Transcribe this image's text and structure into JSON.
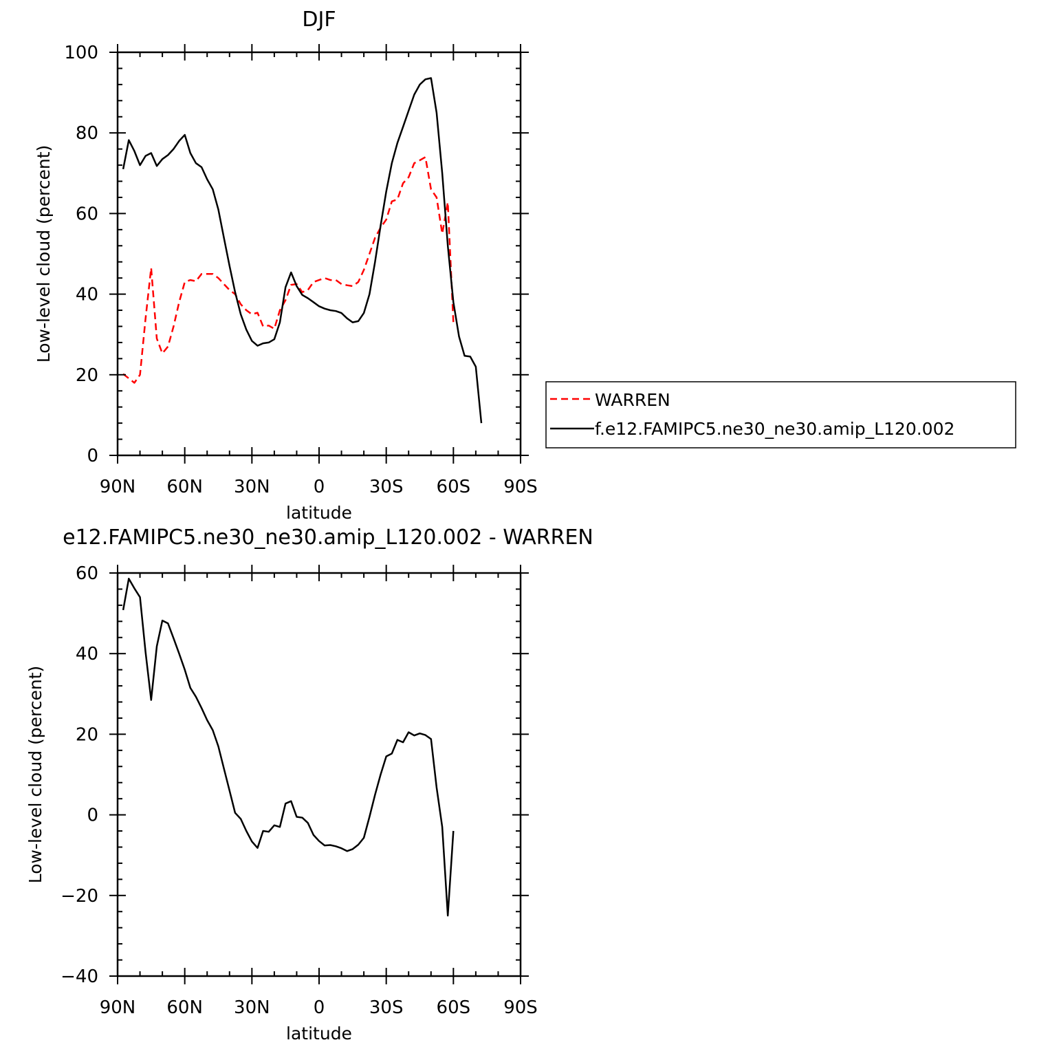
{
  "chart_data": [
    {
      "type": "line",
      "title": "DJF",
      "xlabel": "latitude",
      "ylabel": "Low-level cloud (percent)",
      "xlim": [
        90,
        -90
      ],
      "ylim": [
        0,
        100
      ],
      "xticks": [
        90,
        60,
        30,
        0,
        -30,
        -60,
        -90
      ],
      "xtick_labels": [
        "90N",
        "60N",
        "30N",
        "0",
        "30S",
        "60S",
        "90S"
      ],
      "yticks": [
        0,
        20,
        40,
        60,
        80,
        100
      ],
      "ytick_labels": [
        "0",
        "20",
        "40",
        "60",
        "80",
        "100"
      ],
      "legend_placement": "right",
      "series": [
        {
          "name": "WARREN",
          "color": "#ff0000",
          "dash": "dashed",
          "points": [
            [
              87.5,
              20.2
            ],
            [
              82.5,
              18
            ],
            [
              80,
              20
            ],
            [
              77.5,
              34
            ],
            [
              75,
              46.5
            ],
            [
              72.5,
              29
            ],
            [
              70,
              25.3
            ],
            [
              67.5,
              27
            ],
            [
              65,
              32
            ],
            [
              62.5,
              38
            ],
            [
              60,
              43
            ],
            [
              57.5,
              43.5
            ],
            [
              55,
              43.2
            ],
            [
              52.5,
              45
            ],
            [
              50,
              45
            ],
            [
              47.5,
              45
            ],
            [
              45,
              44
            ],
            [
              42.5,
              42.5
            ],
            [
              40,
              41
            ],
            [
              37.5,
              40
            ],
            [
              35,
              37.5
            ],
            [
              32.5,
              36
            ],
            [
              30,
              35
            ],
            [
              27.5,
              35.4
            ],
            [
              25,
              32
            ],
            [
              22.5,
              32.2
            ],
            [
              20,
              31.4
            ],
            [
              17.5,
              36
            ],
            [
              15,
              38.5
            ],
            [
              12.5,
              42.3
            ],
            [
              10,
              42.5
            ],
            [
              7.5,
              40.5
            ],
            [
              5,
              41
            ],
            [
              2.5,
              43
            ],
            [
              0,
              43.5
            ],
            [
              -2.5,
              44
            ],
            [
              -5,
              43.5
            ],
            [
              -7.5,
              43.5
            ],
            [
              -10,
              42.5
            ],
            [
              -12.5,
              42.2
            ],
            [
              -15,
              42
            ],
            [
              -17.5,
              43
            ],
            [
              -20,
              46
            ],
            [
              -22.5,
              50
            ],
            [
              -25,
              54
            ],
            [
              -27.5,
              56.5
            ],
            [
              -30,
              58.5
            ],
            [
              -32.5,
              63
            ],
            [
              -35,
              63.5
            ],
            [
              -37.5,
              67.5
            ],
            [
              -40,
              69
            ],
            [
              -42.5,
              72.5
            ],
            [
              -45,
              73.2
            ],
            [
              -47.5,
              74
            ],
            [
              -50,
              66
            ],
            [
              -52.5,
              64
            ],
            [
              -55,
              55
            ],
            [
              -57.5,
              62.8
            ],
            [
              -60,
              33
            ]
          ]
        },
        {
          "name": "f.e12.FAMIPC5.ne30_ne30.amip_L120.002",
          "color": "#000000",
          "dash": "solid",
          "points": [
            [
              87.5,
              71
            ],
            [
              85,
              78.2
            ],
            [
              82.5,
              75.5
            ],
            [
              80,
              72
            ],
            [
              77.5,
              74.3
            ],
            [
              75,
              75
            ],
            [
              72.5,
              71.8
            ],
            [
              70,
              73.5
            ],
            [
              67.5,
              74.5
            ],
            [
              65,
              76
            ],
            [
              62.5,
              78
            ],
            [
              60,
              79.5
            ],
            [
              57.5,
              75
            ],
            [
              55,
              72.5
            ],
            [
              52.5,
              71.5
            ],
            [
              50,
              68.5
            ],
            [
              47.5,
              66
            ],
            [
              45,
              61
            ],
            [
              42.5,
              54
            ],
            [
              40,
              47
            ],
            [
              37.5,
              40.5
            ],
            [
              35,
              35
            ],
            [
              32.5,
              31.2
            ],
            [
              30,
              28.4
            ],
            [
              27.5,
              27.2
            ],
            [
              25,
              27.8
            ],
            [
              22.5,
              28
            ],
            [
              20,
              28.8
            ],
            [
              17.5,
              33
            ],
            [
              15,
              41.7
            ],
            [
              12.5,
              45.4
            ],
            [
              10,
              42
            ],
            [
              7.5,
              39.8
            ],
            [
              5,
              39
            ],
            [
              2.5,
              38
            ],
            [
              0,
              37
            ],
            [
              -2.5,
              36.4
            ],
            [
              -5,
              36
            ],
            [
              -7.5,
              35.8
            ],
            [
              -10,
              35.3
            ],
            [
              -12.5,
              34
            ],
            [
              -15,
              33
            ],
            [
              -17.5,
              33.3
            ],
            [
              -20,
              35.3
            ],
            [
              -22.5,
              40
            ],
            [
              -25,
              48
            ],
            [
              -27.5,
              57
            ],
            [
              -30,
              65.5
            ],
            [
              -32.5,
              72.5
            ],
            [
              -35,
              77.5
            ],
            [
              -37.5,
              81.5
            ],
            [
              -40,
              85.5
            ],
            [
              -42.5,
              89.5
            ],
            [
              -45,
              92
            ],
            [
              -47.5,
              93.3
            ],
            [
              -50,
              93.6
            ],
            [
              -52.5,
              85
            ],
            [
              -55,
              70
            ],
            [
              -57.5,
              52
            ],
            [
              -60,
              38
            ],
            [
              -62.5,
              29.5
            ],
            [
              -65,
              24.7
            ],
            [
              -67.5,
              24.5
            ],
            [
              -70,
              22
            ],
            [
              -72.5,
              8
            ]
          ]
        }
      ]
    },
    {
      "type": "line",
      "title": "e12.FAMIPC5.ne30_ne30.amip_L120.002 - WARREN",
      "xlabel": "latitude",
      "ylabel": "Low-level cloud (percent)",
      "xlim": [
        90,
        -90
      ],
      "ylim": [
        -40,
        60
      ],
      "xticks": [
        90,
        60,
        30,
        0,
        -30,
        -60,
        -90
      ],
      "xtick_labels": [
        "90N",
        "60N",
        "30N",
        "0",
        "30S",
        "60S",
        "90S"
      ],
      "yticks": [
        -40,
        -20,
        0,
        20,
        40,
        60
      ],
      "ytick_labels": [
        "−40",
        "−20",
        "0",
        "20",
        "40",
        "60"
      ],
      "series": [
        {
          "color": "#000000",
          "dash": "solid",
          "points": [
            [
              87.5,
              50.8
            ],
            [
              85,
              58.6
            ],
            [
              82.5,
              56.2
            ],
            [
              80,
              54
            ],
            [
              77.5,
              40.3
            ],
            [
              75,
              28.5
            ],
            [
              72.5,
              41.8
            ],
            [
              70,
              48.2
            ],
            [
              67.5,
              47.5
            ],
            [
              65,
              43.8
            ],
            [
              62.5,
              40
            ],
            [
              60,
              36
            ],
            [
              57.5,
              31.5
            ],
            [
              55,
              29.3
            ],
            [
              52.5,
              26.5
            ],
            [
              50,
              23.5
            ],
            [
              47.5,
              21
            ],
            [
              45,
              17
            ],
            [
              42.5,
              11.5
            ],
            [
              40,
              6
            ],
            [
              37.5,
              0.5
            ],
            [
              35,
              -1
            ],
            [
              32.5,
              -4
            ],
            [
              30,
              -6.6
            ],
            [
              27.5,
              -8.2
            ],
            [
              25,
              -4
            ],
            [
              22.5,
              -4.2
            ],
            [
              20,
              -2.6
            ],
            [
              17.5,
              -3
            ],
            [
              15,
              2.8
            ],
            [
              12.5,
              3.4
            ],
            [
              10,
              -0.5
            ],
            [
              7.5,
              -0.7
            ],
            [
              5,
              -2
            ],
            [
              2.5,
              -5
            ],
            [
              0,
              -6.5
            ],
            [
              -2.5,
              -7.6
            ],
            [
              -5,
              -7.5
            ],
            [
              -7.5,
              -7.8
            ],
            [
              -10,
              -8.3
            ],
            [
              -12.5,
              -9
            ],
            [
              -15,
              -8.5
            ],
            [
              -17.5,
              -7.4
            ],
            [
              -20,
              -5.7
            ],
            [
              -22.5,
              -0.5
            ],
            [
              -25,
              5
            ],
            [
              -27.5,
              10
            ],
            [
              -30,
              14.5
            ],
            [
              -32.5,
              15.2
            ],
            [
              -35,
              18.6
            ],
            [
              -37.5,
              18
            ],
            [
              -40,
              20.5
            ],
            [
              -42.5,
              19.7
            ],
            [
              -45,
              20.2
            ],
            [
              -47.5,
              19.8
            ],
            [
              -50,
              18.8
            ],
            [
              -52.5,
              6.8
            ],
            [
              -55,
              -3
            ],
            [
              -57.5,
              -25
            ],
            [
              -60,
              -4
            ]
          ]
        }
      ]
    }
  ]
}
